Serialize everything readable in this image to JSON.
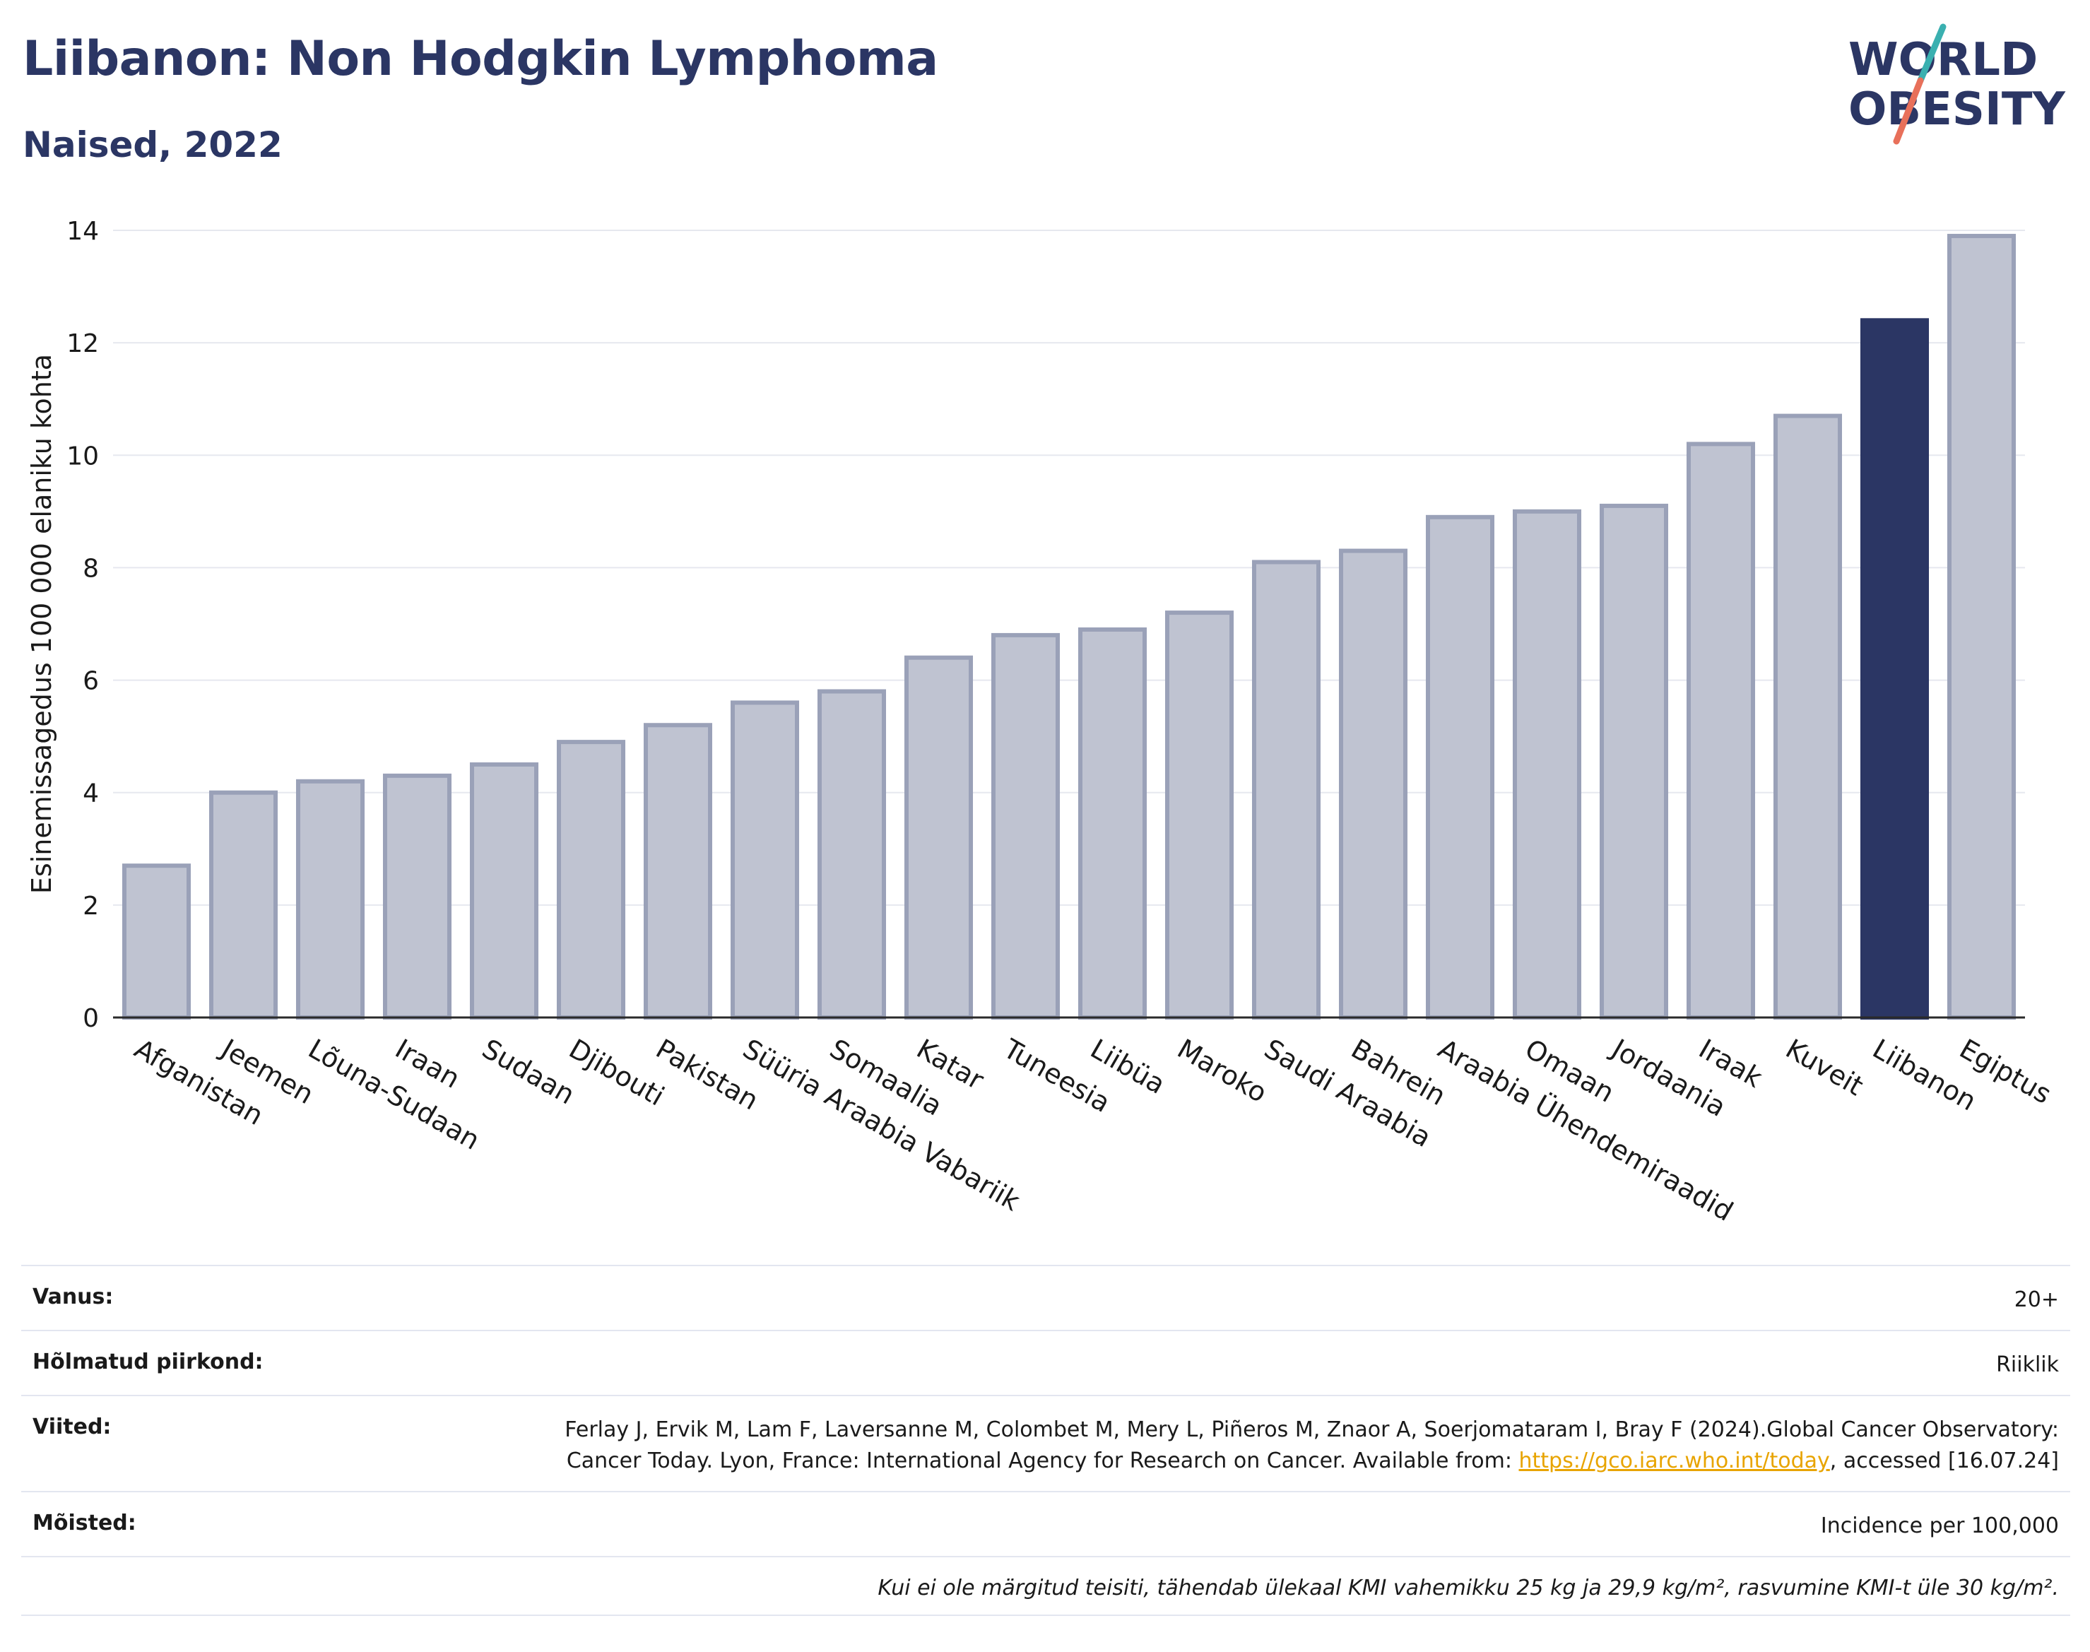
{
  "header": {
    "title": "Liibanon: Non Hodgkin Lymphoma",
    "subtitle": "Naised, 2022"
  },
  "logo": {
    "line1": "WORLD",
    "line2": "OBESITY",
    "text_color": "#2b3664",
    "accent_teal": "#3ab0b0",
    "accent_coral": "#e8705a"
  },
  "chart_data": {
    "type": "bar",
    "title": "Liibanon: Non Hodgkin Lymphoma",
    "subtitle": "Naised, 2022",
    "xlabel": "",
    "ylabel": "Esinemissagedus 100 000 elaniku kohta",
    "ylim": [
      0,
      14
    ],
    "yticks": [
      0,
      2,
      4,
      6,
      8,
      10,
      12,
      14
    ],
    "grid": true,
    "categories": [
      "Afganistan",
      "Jeemen",
      "Lõuna-Sudaan",
      "Iraan",
      "Sudaan",
      "Djibouti",
      "Pakistan",
      "Süüria Araabia Vabariik",
      "Somaalia",
      "Katar",
      "Tuneesia",
      "Liibüa",
      "Maroko",
      "Saudi Araabia",
      "Bahrein",
      "Araabia Ühendemiraadid",
      "Omaan",
      "Jordaania",
      "Iraak",
      "Kuveit",
      "Liibanon",
      "Egiptus"
    ],
    "values": [
      2.7,
      4.0,
      4.2,
      4.3,
      4.5,
      4.9,
      5.2,
      5.6,
      5.8,
      6.4,
      6.8,
      6.9,
      7.2,
      8.1,
      8.3,
      8.9,
      9.0,
      9.1,
      10.2,
      10.7,
      12.4,
      13.9
    ],
    "highlight": "Liibanon",
    "colors": {
      "bar": "#bfc3d1",
      "bar_border": "#9aa1b8",
      "highlight": "#2b3664",
      "grid": "#e6e8ef"
    }
  },
  "info": {
    "age_label": "Vanus:",
    "age_value": "20+",
    "region_label": "Hõlmatud piirkond:",
    "region_value": "Riiklik",
    "ref_label": "Viited:",
    "ref_text1": "Ferlay J, Ervik M, Lam F, Laversanne M, Colombet M, Mery L, Piñeros M, Znaor A, Soerjomataram I, Bray F (2024).Global Cancer Observatory: Cancer Today. Lyon, France: International Agency for Research on Cancer. Available from: ",
    "ref_link": "https://gco.iarc.who.int/today",
    "ref_text2": ", accessed [16.07.24]",
    "def_label": "Mõisted:",
    "def_value": "Incidence per 100,000",
    "note": "Kui ei ole märgitud teisiti, tähendab ülekaal KMI vahemikku 25 kg ja 29,9 kg/m², rasvumine KMI-t üle 30 kg/m²."
  }
}
